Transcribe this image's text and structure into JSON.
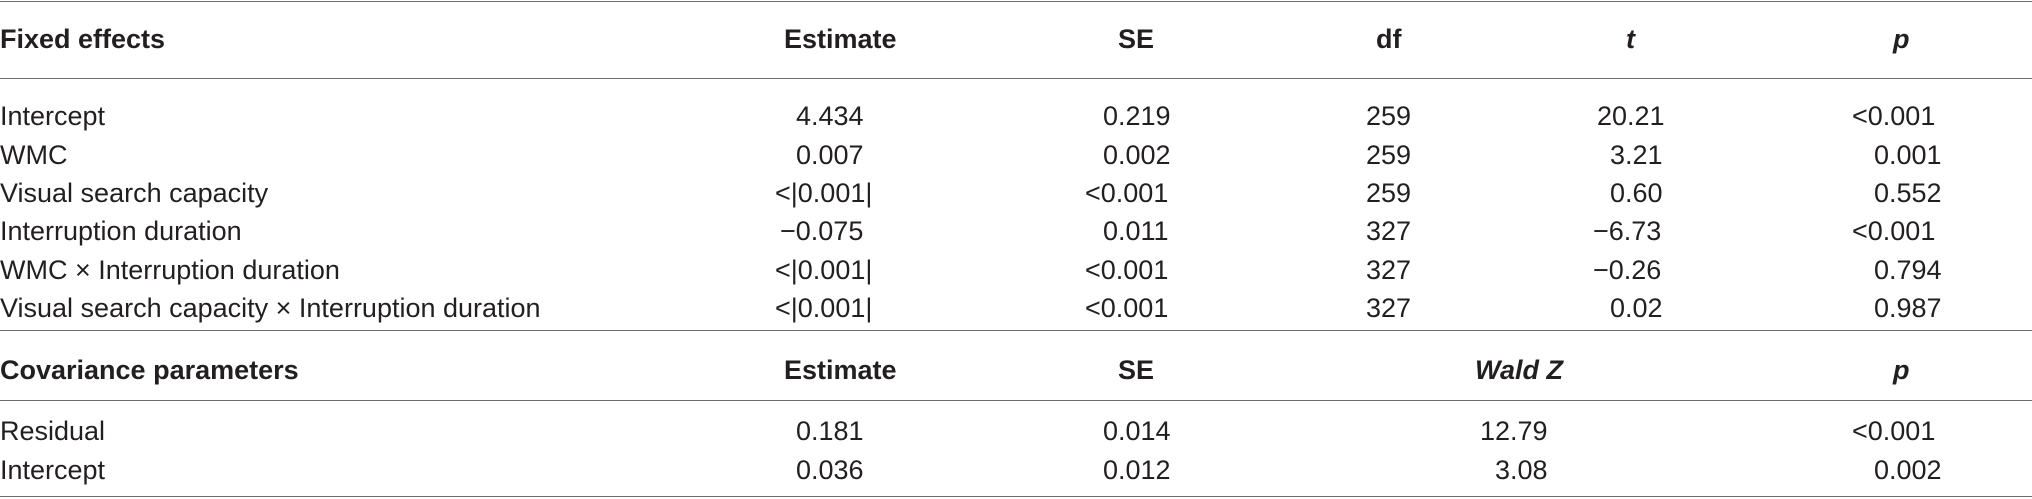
{
  "fixed": {
    "header": {
      "label": "Fixed effects",
      "estimate": "Estimate",
      "se": "SE",
      "df": "df",
      "t": "t",
      "p": "p"
    },
    "rows": [
      {
        "label": "Intercept",
        "estimate": "4.434",
        "se": "0.219",
        "df": "259",
        "t": "20.21",
        "p": "<0.001"
      },
      {
        "label": "WMC",
        "estimate": "0.007",
        "se": "0.002",
        "df": "259",
        "t": "3.21",
        "p": "0.001"
      },
      {
        "label": "Visual search capacity",
        "estimate": "<|0.001|",
        "se": "<0.001",
        "df": "259",
        "t": "0.60",
        "p": "0.552"
      },
      {
        "label": "Interruption duration",
        "estimate": "−0.075",
        "se": "0.011",
        "df": "327",
        "t": "−6.73",
        "p": "<0.001"
      },
      {
        "label": "WMC × Interruption duration",
        "estimate": "<|0.001|",
        "se": "<0.001",
        "df": "327",
        "t": "−0.26",
        "p": "0.794"
      },
      {
        "label": "Visual search capacity × Interruption duration",
        "estimate": "<|0.001|",
        "se": "<0.001",
        "df": "327",
        "t": "0.02",
        "p": "0.987"
      }
    ]
  },
  "covariance": {
    "header": {
      "label": "Covariance parameters",
      "estimate": "Estimate",
      "se": "SE",
      "wald": "Wald Z",
      "p": "p"
    },
    "rows": [
      {
        "label": "Residual",
        "estimate": "0.181",
        "se": "0.014",
        "wald": "12.79",
        "p": "<0.001"
      },
      {
        "label": "Intercept",
        "estimate": "0.036",
        "se": "0.012",
        "wald": "3.08",
        "p": "0.002"
      }
    ]
  }
}
